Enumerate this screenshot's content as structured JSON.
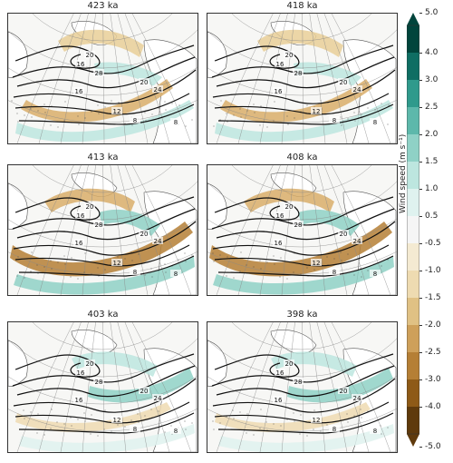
{
  "panels": [
    {
      "title": "423 ka",
      "pattern": "a",
      "contours": [
        "20",
        "16",
        "28",
        "16",
        "12",
        "8",
        "20",
        "24",
        "8"
      ]
    },
    {
      "title": "418 ka",
      "pattern": "a",
      "contours": [
        "20",
        "16",
        "28",
        "16",
        "12",
        "8",
        "20",
        "24",
        "8"
      ]
    },
    {
      "title": "413 ka",
      "pattern": "b",
      "contours": [
        "20",
        "16",
        "28",
        "16",
        "12",
        "8",
        "20",
        "24",
        "8"
      ]
    },
    {
      "title": "408 ka",
      "pattern": "b",
      "contours": [
        "20",
        "16",
        "28",
        "16",
        "12",
        "8",
        "20",
        "24",
        "8"
      ]
    },
    {
      "title": "403 ka",
      "pattern": "c",
      "contours": [
        "20",
        "16",
        "28",
        "16",
        "12",
        "8",
        "20",
        "24",
        "8"
      ]
    },
    {
      "title": "398 ka",
      "pattern": "c",
      "contours": [
        "20",
        "16",
        "28",
        "16",
        "12",
        "8",
        "20",
        "24",
        "8"
      ]
    }
  ],
  "colorbar": {
    "label": "Wind speed (m s⁻¹)",
    "ticks": [
      "5.0",
      "4.0",
      "3.0",
      "2.5",
      "2.0",
      "1.5",
      "1.0",
      "0.5",
      "-0.5",
      "-1.0",
      "-1.5",
      "-2.0",
      "-2.5",
      "-3.0",
      "-4.0",
      "-5.0"
    ],
    "colors": [
      "#01453c",
      "#0f6e63",
      "#2f9a8c",
      "#5db8ab",
      "#8fd1c6",
      "#bde6df",
      "#dff2ef",
      "#f5f5f5",
      "#f4ead2",
      "#eedbb1",
      "#e0c184",
      "#cea05a",
      "#b57f35",
      "#8e5a17",
      "#5f3a0c"
    ]
  }
}
